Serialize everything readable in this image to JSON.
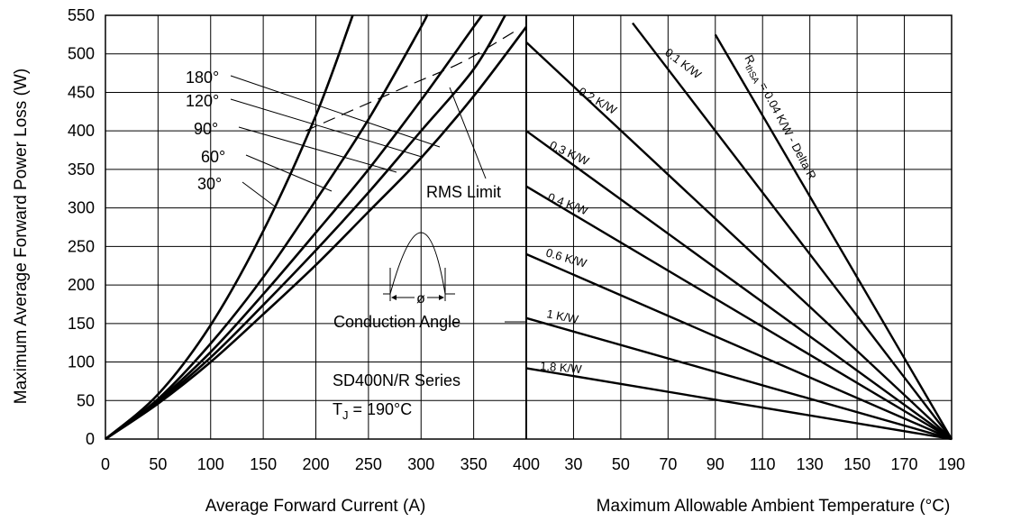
{
  "chart_data": [
    {
      "type": "line",
      "xlabel": "Average Forward Current (A)",
      "ylabel": "Maximum Average Forward Power Loss (W)",
      "xlim": [
        0,
        400
      ],
      "ylim": [
        0,
        550
      ],
      "x_ticks": [
        "0",
        "50",
        "100",
        "150",
        "200",
        "250",
        "300",
        "350",
        "400"
      ],
      "y_ticks": [
        "0",
        "50",
        "100",
        "150",
        "200",
        "250",
        "300",
        "350",
        "400",
        "450",
        "500",
        "550"
      ],
      "grid": true,
      "series": [
        {
          "name": "30°",
          "x": [
            0,
            50,
            100,
            150,
            200,
            235
          ],
          "y": [
            0,
            58,
            148,
            270,
            420,
            550
          ]
        },
        {
          "name": "60°",
          "x": [
            0,
            50,
            100,
            150,
            200,
            250,
            300,
            305
          ],
          "y": [
            0,
            52,
            124,
            210,
            310,
            415,
            535,
            550
          ]
        },
        {
          "name": "90°",
          "x": [
            0,
            50,
            100,
            150,
            200,
            250,
            300,
            350,
            358
          ],
          "y": [
            0,
            50,
            113,
            188,
            268,
            350,
            440,
            535,
            550
          ]
        },
        {
          "name": "120°",
          "x": [
            0,
            50,
            100,
            150,
            200,
            250,
            300,
            350,
            380
          ],
          "y": [
            0,
            48,
            106,
            174,
            245,
            320,
            400,
            480,
            550
          ]
        },
        {
          "name": "180°",
          "x": [
            0,
            50,
            100,
            150,
            200,
            250,
            300,
            350,
            400
          ],
          "y": [
            0,
            46,
            100,
            162,
            226,
            295,
            365,
            445,
            535
          ]
        },
        {
          "name": "RMS Limit",
          "x": [
            190,
            240,
            290,
            340,
            390
          ],
          "y": [
            400,
            430,
            460,
            490,
            530
          ]
        }
      ],
      "annotations": {
        "rms_limit": "RMS Limit",
        "conduction_angle": "Conduction Angle",
        "phi": "ø",
        "series_name": "SD400N/R Series",
        "tj_prefix": "T",
        "tj_sub": "J",
        "tj_value": " = 190°C"
      }
    },
    {
      "type": "line",
      "xlabel": "Maximum Allowable Ambient Temperature (°C)",
      "ylabel": "",
      "xlim": [
        10,
        190
      ],
      "ylim": [
        0,
        550
      ],
      "x_ticks": [
        "400",
        "30",
        "50",
        "70",
        "90",
        "110",
        "130",
        "150",
        "170",
        "190"
      ],
      "grid": true,
      "series": [
        {
          "name": "R thSA = 0.04 K/W - Delta R",
          "label_main": "R",
          "label_sub": "thSA",
          "label_rest": " = 0.04 K/W - Delta R",
          "x": [
            90,
            190
          ],
          "y": [
            525,
            0
          ]
        },
        {
          "name": "0.1 K/W",
          "x": [
            55,
            190
          ],
          "y": [
            540,
            0
          ]
        },
        {
          "name": "0.2 K/W",
          "x": [
            10,
            190
          ],
          "y": [
            515,
            0
          ]
        },
        {
          "name": "0.3 K/W",
          "x": [
            10,
            190
          ],
          "y": [
            400,
            0
          ]
        },
        {
          "name": "0.4 K/W",
          "x": [
            10,
            190
          ],
          "y": [
            328,
            0
          ]
        },
        {
          "name": "0.6 K/W",
          "x": [
            10,
            190
          ],
          "y": [
            240,
            0
          ]
        },
        {
          "name": "1 K/W",
          "x": [
            10,
            190
          ],
          "y": [
            157,
            0
          ]
        },
        {
          "name": "1.8 K/W",
          "x": [
            10,
            190
          ],
          "y": [
            92,
            0
          ]
        }
      ]
    }
  ]
}
